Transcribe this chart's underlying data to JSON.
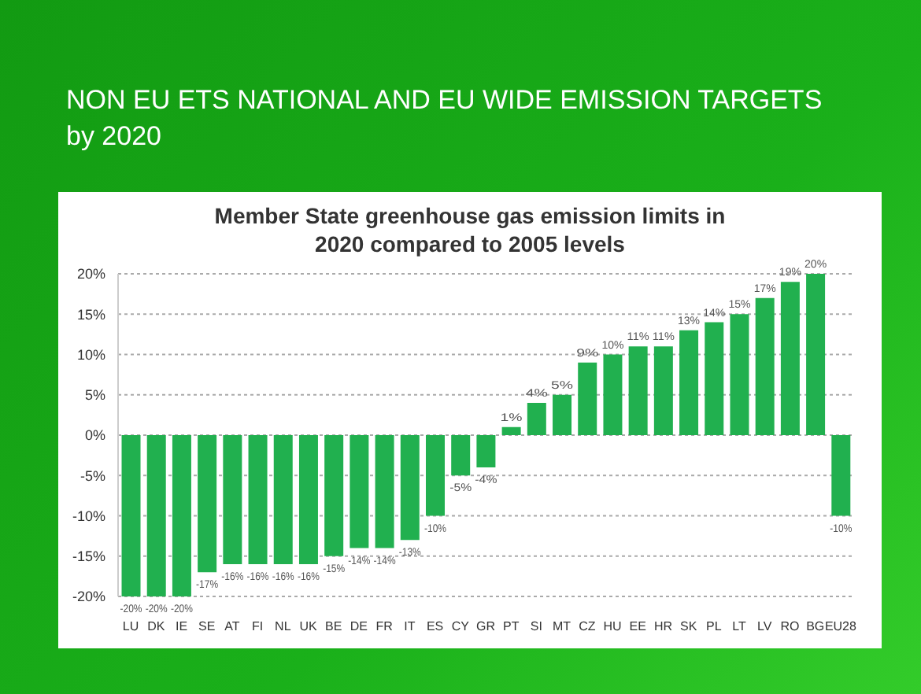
{
  "chart_data": {
    "type": "bar",
    "title": "NON EU ETS NATIONAL AND EU WIDE EMISSION TARGETS by 2020",
    "subtitle": "Member State greenhouse gas emission limits in 2020 compared to 2005 levels",
    "categories": [
      "LU",
      "DK",
      "IE",
      "SE",
      "AT",
      "FI",
      "NL",
      "UK",
      "BE",
      "DE",
      "FR",
      "IT",
      "ES",
      "CY",
      "GR",
      "PT",
      "SI",
      "MT",
      "CZ",
      "HU",
      "EE",
      "HR",
      "SK",
      "PL",
      "LT",
      "LV",
      "RO",
      "BG",
      "EU28"
    ],
    "values": [
      -20,
      -20,
      -20,
      -17,
      -16,
      -16,
      -16,
      -16,
      -15,
      -14,
      -14,
      -13,
      -10,
      -5,
      -4,
      1,
      4,
      5,
      9,
      10,
      11,
      11,
      13,
      14,
      15,
      17,
      19,
      20,
      -10
    ],
    "value_labels": [
      "-20%",
      "-20%",
      "-20%",
      "-17%",
      "-16%",
      "-16%",
      "-16%",
      "-16%",
      "-15%",
      "-14%",
      "-14%",
      "-13%",
      "-10%",
      "-5%",
      "-4%",
      "1%",
      "4%",
      "5%",
      "9%",
      "10%",
      "11%",
      "11%",
      "13%",
      "14%",
      "15%",
      "17%",
      "19%",
      "20%",
      "-10%"
    ],
    "color": "#21b04f",
    "ylim": [
      -20,
      20
    ],
    "yticks": [
      {
        "value": -20,
        "label": "-20%"
      },
      {
        "value": -15,
        "label": "-15%"
      },
      {
        "value": -10,
        "label": "-10%"
      },
      {
        "value": -5,
        "label": "-5%"
      },
      {
        "value": 0,
        "label": "0%"
      },
      {
        "value": 5,
        "label": "5%"
      },
      {
        "value": 10,
        "label": "10%"
      },
      {
        "value": 15,
        "label": "15%"
      },
      {
        "value": 20,
        "label": "20%"
      }
    ],
    "grid": "y"
  }
}
